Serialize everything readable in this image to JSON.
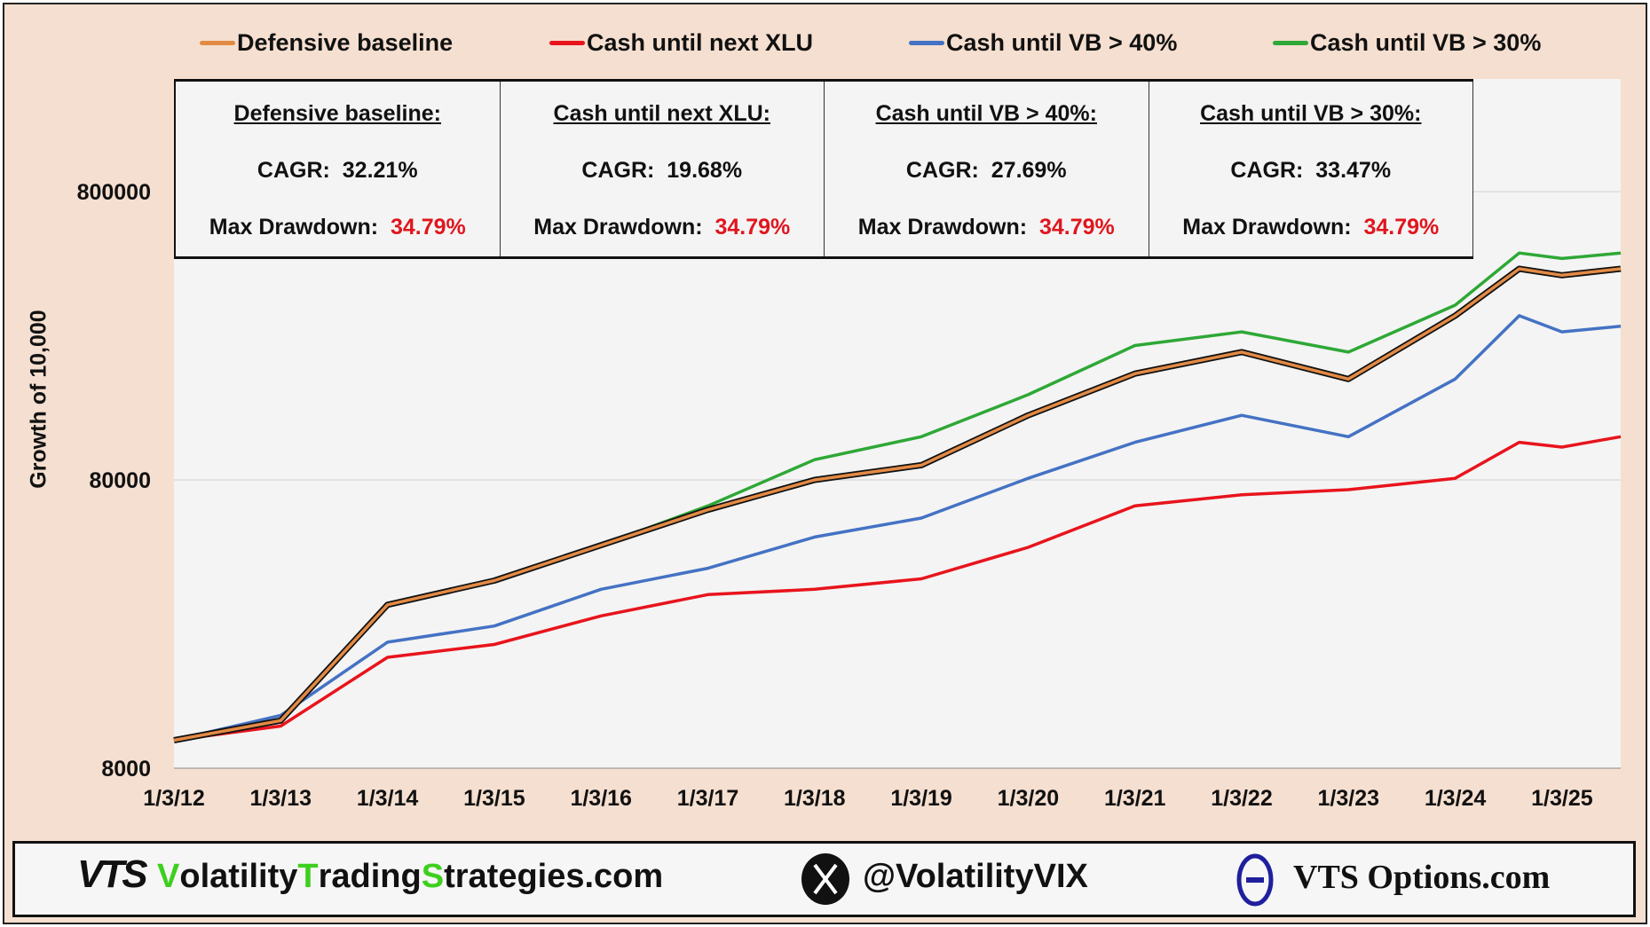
{
  "chart_data": {
    "type": "line",
    "ylabel": "Growth of 10,000",
    "xlabel": "",
    "y_scale": "log",
    "ylim": [
      8000,
      2000000
    ],
    "y_ticks": [
      "8000",
      "80000",
      "800000"
    ],
    "y_tick_values": [
      8000,
      80000,
      800000
    ],
    "x_ticks": [
      "1/3/12",
      "1/3/13",
      "1/3/14",
      "1/3/15",
      "1/3/16",
      "1/3/17",
      "1/3/18",
      "1/3/19",
      "1/3/20",
      "1/3/21",
      "1/3/22",
      "1/3/23",
      "1/3/24",
      "1/3/25"
    ],
    "xlim": [
      2012.0,
      2025.55
    ],
    "grid": "horizontal",
    "legend_placement": "top",
    "x": [
      2012.0,
      2013.0,
      2014.0,
      2015.0,
      2016.0,
      2017.0,
      2018.0,
      2019.0,
      2020.0,
      2021.0,
      2022.0,
      2023.0,
      2024.0,
      2024.6,
      2025.0,
      2025.55
    ],
    "series": [
      {
        "name": "Cash until next XLU",
        "color": "#e8141c",
        "values": [
          10000,
          11200,
          19400,
          21500,
          27000,
          32000,
          33400,
          36300,
          46700,
          65000,
          71000,
          74000,
          81000,
          108000,
          104000,
          113000
        ]
      },
      {
        "name": "Cash until VB > 40%",
        "color": "#4472c4",
        "values": [
          10000,
          12200,
          21900,
          24900,
          33400,
          39500,
          50700,
          59000,
          81000,
          108000,
          134000,
          113000,
          179000,
          297000,
          261000,
          273000
        ]
      },
      {
        "name": "Cash until VB > 30%",
        "color": "#2ea836",
        "values": [
          10000,
          11800,
          29500,
          36000,
          47500,
          65000,
          94000,
          113000,
          158000,
          234000,
          261000,
          222000,
          323000,
          490000,
          469000,
          490000
        ]
      },
      {
        "name": "Defensive baseline",
        "color": "#e38a45",
        "outline": "#111111",
        "values": [
          10000,
          11700,
          29500,
          35800,
          47500,
          63000,
          80000,
          90000,
          134000,
          187000,
          222000,
          179000,
          297000,
          432000,
          410000,
          432000
        ]
      }
    ]
  },
  "legend": [
    {
      "label": "Defensive baseline",
      "color": "#e38a45"
    },
    {
      "label": "Cash until next XLU",
      "color": "#e8141c"
    },
    {
      "label": "Cash until VB > 40%",
      "color": "#4472c4"
    },
    {
      "label": "Cash until VB > 30%",
      "color": "#2ea836"
    }
  ],
  "stats": [
    {
      "title": "Defensive baseline:",
      "cagr_label": "CAGR:",
      "cagr": "32.21%",
      "dd_label": "Max Drawdown:",
      "dd": "34.79%"
    },
    {
      "title": "Cash until next XLU:",
      "cagr_label": "CAGR:",
      "cagr": "19.68%",
      "dd_label": "Max Drawdown:",
      "dd": "34.79%"
    },
    {
      "title": "Cash until VB > 40%:",
      "cagr_label": "CAGR:",
      "cagr": "27.69%",
      "dd_label": "Max Drawdown:",
      "dd": "34.79%"
    },
    {
      "title": "Cash until VB > 30%:",
      "cagr_label": "CAGR:",
      "cagr": "33.47%",
      "dd_label": "Max Drawdown:",
      "dd": "34.79%"
    }
  ],
  "footer": {
    "logo": "VTS",
    "site_parts": [
      "V",
      "olatility",
      "T",
      "rading",
      "S",
      "trategies.com"
    ],
    "x_icon": "x-logo-icon",
    "twitter": "@VolatilityVIX",
    "theta_icon": "theta-logo-icon",
    "options_site": "VTS Options.com"
  }
}
